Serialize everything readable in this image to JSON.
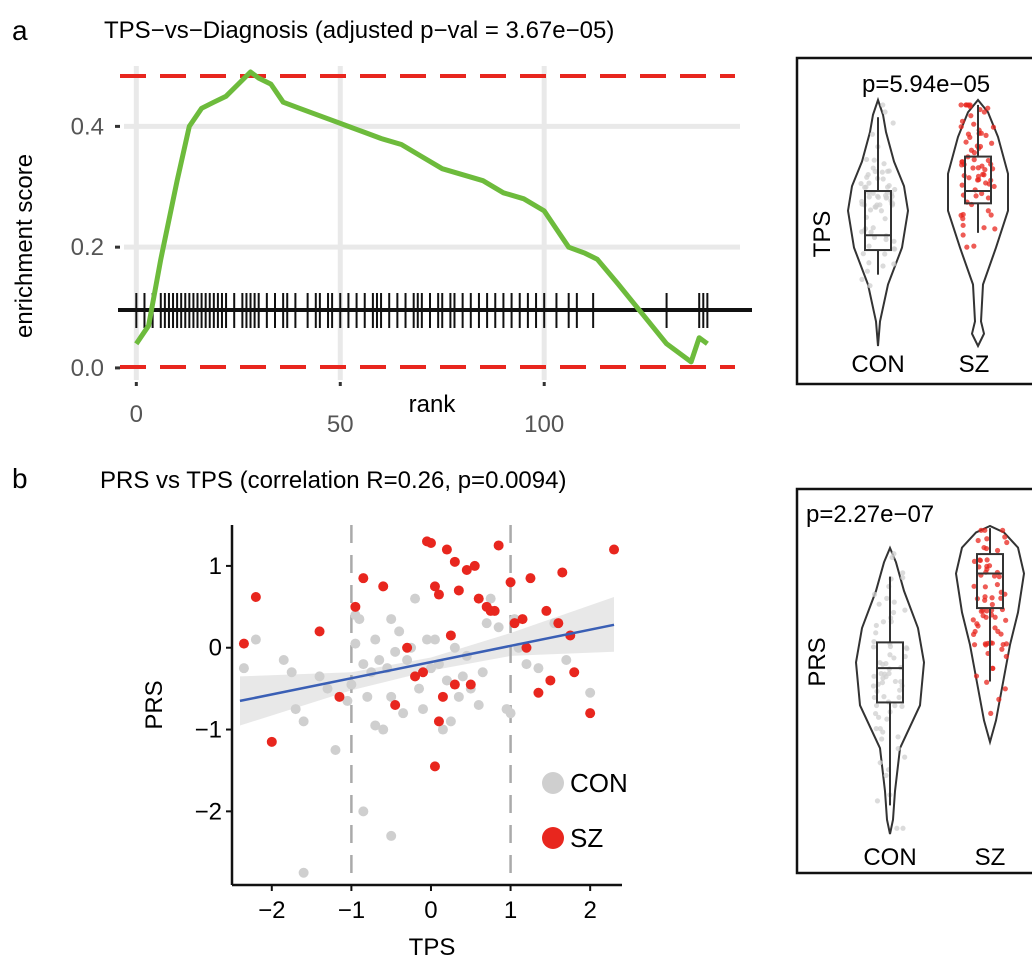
{
  "panel_a": {
    "label": "a",
    "title": "TPS−vs−Diagnosis (adjusted p−val = 3.67e−05)",
    "ylabel": "enrichment score",
    "xlabel": "rank",
    "yticks": [
      "0.0",
      "0.2",
      "0.4"
    ],
    "xticks": [
      "0",
      "50",
      "100"
    ]
  },
  "panel_a_violin": {
    "pvalue": "p=5.94e−05",
    "ylabel": "TPS",
    "groups": [
      "CON",
      "SZ"
    ]
  },
  "panel_b": {
    "label": "b",
    "title": "PRS vs TPS (correlation R=0.26, p=0.0094)",
    "ylabel": "PRS",
    "xlabel": "TPS",
    "yticks": [
      "−2",
      "−1",
      "0",
      "1"
    ],
    "xticks": [
      "−2",
      "−1",
      "0",
      "1",
      "2"
    ],
    "legend": [
      "CON",
      "SZ"
    ]
  },
  "panel_b_violin": {
    "pvalue": "p=2.27e−07",
    "ylabel": "PRS",
    "groups": [
      "CON",
      "SZ"
    ]
  },
  "colors": {
    "running_score": "#6dbb3c",
    "threshold": "#e8261e",
    "con": "#cfcfcf",
    "sz": "#e8261e",
    "regression": "#3a5fb5",
    "band": "#e6e6e6"
  },
  "chart_data": [
    {
      "type": "line",
      "title": "TPS−vs−Diagnosis (adjusted p−val = 3.67e−05)",
      "xlabel": "rank",
      "ylabel": "enrichment score",
      "xlim": [
        -4,
        148
      ],
      "ylim": [
        -0.02,
        0.5
      ],
      "x": [
        0,
        3,
        6,
        10,
        13,
        16,
        19,
        22,
        25,
        28,
        30,
        33,
        36,
        40,
        44,
        48,
        52,
        56,
        60,
        65,
        70,
        75,
        80,
        85,
        90,
        95,
        100,
        103,
        106,
        110,
        113,
        118,
        124,
        130,
        136,
        138,
        140
      ],
      "series": [
        {
          "values": [
            0.04,
            0.07,
            0.18,
            0.31,
            0.4,
            0.43,
            0.44,
            0.45,
            0.47,
            0.49,
            0.48,
            0.47,
            0.44,
            0.43,
            0.42,
            0.41,
            0.4,
            0.39,
            0.38,
            0.37,
            0.35,
            0.33,
            0.32,
            0.31,
            0.29,
            0.28,
            0.26,
            0.23,
            0.2,
            0.19,
            0.18,
            0.14,
            0.09,
            0.04,
            0.01,
            0.05,
            0.04
          ]
        }
      ],
      "hits": [
        0,
        2,
        4,
        6,
        7,
        8,
        9,
        10,
        11,
        12,
        13,
        14,
        15,
        16,
        17,
        18,
        19,
        20,
        21,
        22,
        24,
        26,
        27,
        28,
        29,
        30,
        32,
        34,
        36,
        37,
        39,
        42,
        44,
        45,
        47,
        48,
        50,
        52,
        54,
        56,
        58,
        59,
        60,
        62,
        64,
        66,
        68,
        69,
        70,
        72,
        74,
        75,
        77,
        78,
        80,
        82,
        84,
        86,
        88,
        90,
        92,
        94,
        96,
        98,
        100,
        103,
        106,
        108,
        112,
        130,
        138,
        139,
        140
      ],
      "thresholds": [
        0.0,
        0.48
      ],
      "yticks": [
        0.0,
        0.2,
        0.4
      ],
      "xticks": [
        0,
        50,
        100
      ],
      "grid": true
    },
    {
      "type": "scatter",
      "title": "PRS vs TPS (correlation R=0.26, p=0.0094)",
      "xlabel": "TPS",
      "ylabel": "PRS",
      "xlim": [
        -2.5,
        2.4
      ],
      "ylim": [
        -2.9,
        1.5
      ],
      "vlines": [
        -1,
        1
      ],
      "legend_position": "bottom-right",
      "regression": {
        "x": [
          -2.4,
          2.3
        ],
        "y": [
          -0.65,
          0.28
        ],
        "band": [
          [
            -2.4,
            -0.95,
            -0.35
          ],
          [
            -1.0,
            -0.52,
            -0.3
          ],
          [
            0.0,
            -0.28,
            -0.12
          ],
          [
            1.0,
            -0.1,
            0.18
          ],
          [
            2.3,
            -0.05,
            0.62
          ]
        ]
      },
      "series": [
        {
          "name": "CON",
          "x": [
            -2.35,
            -2.2,
            -1.85,
            -1.75,
            -1.7,
            -1.6,
            -1.4,
            -1.3,
            -1.2,
            -1.05,
            -1.0,
            -0.95,
            -0.9,
            -0.85,
            -0.8,
            -0.75,
            -0.7,
            -0.7,
            -0.65,
            -0.6,
            -0.55,
            -0.5,
            -0.5,
            -0.45,
            -0.4,
            -0.35,
            -0.3,
            -0.25,
            -0.2,
            -0.2,
            -0.15,
            -0.1,
            -0.05,
            0.0,
            0.05,
            0.1,
            0.15,
            0.2,
            0.25,
            0.3,
            0.35,
            0.4,
            0.45,
            0.5,
            0.6,
            0.65,
            0.7,
            0.85,
            0.95,
            1.0,
            1.05,
            1.1,
            1.2,
            1.35,
            1.55,
            1.7,
            2.0,
            -0.85,
            -0.5,
            -1.6,
            -0.95,
            0.75
          ],
          "y": [
            -0.25,
            0.1,
            -0.15,
            -0.3,
            -0.75,
            -0.9,
            -0.35,
            -0.5,
            -1.25,
            -0.65,
            -0.45,
            0.05,
            0.35,
            -0.2,
            -0.6,
            -0.3,
            0.1,
            -0.95,
            -0.15,
            -1.0,
            -0.25,
            0.35,
            -0.6,
            -0.05,
            0.2,
            -0.8,
            -0.15,
            0.0,
            -0.35,
            0.6,
            -0.5,
            -0.75,
            0.1,
            -0.25,
            0.1,
            -0.2,
            -1.0,
            -0.4,
            -0.9,
            0.0,
            -0.6,
            -0.35,
            -0.1,
            -0.5,
            -0.7,
            -0.3,
            0.3,
            0.25,
            -0.75,
            -0.8,
            0.35,
            0.0,
            -0.2,
            -0.25,
            0.3,
            -0.15,
            -0.55,
            -2.0,
            -2.3,
            -2.75,
            0.4,
            0.6
          ]
        },
        {
          "name": "SZ",
          "x": [
            -2.35,
            -2.2,
            -2.0,
            -1.4,
            -1.15,
            -0.95,
            -0.85,
            -0.6,
            -0.45,
            -0.2,
            0.0,
            0.05,
            0.1,
            0.2,
            0.3,
            0.35,
            0.45,
            0.55,
            0.6,
            0.7,
            0.75,
            0.8,
            0.85,
            1.0,
            1.05,
            1.15,
            1.25,
            1.35,
            1.45,
            1.5,
            1.6,
            1.65,
            1.75,
            1.8,
            2.0,
            2.3,
            0.3,
            0.5,
            -0.05,
            0.05,
            0.15,
            -0.1,
            1.2,
            0.25,
            0.1,
            -0.3
          ],
          "y": [
            0.05,
            0.62,
            -1.15,
            0.2,
            -0.6,
            0.5,
            0.85,
            0.75,
            -0.7,
            -0.35,
            1.28,
            0.75,
            0.65,
            1.2,
            -0.45,
            0.7,
            0.95,
            1.0,
            0.6,
            0.5,
            0.45,
            0.45,
            1.25,
            0.8,
            0.3,
            0.35,
            0.85,
            -0.55,
            0.45,
            -0.4,
            0.3,
            0.92,
            0.15,
            -0.3,
            -0.8,
            1.2,
            1.05,
            -0.45,
            1.3,
            -1.45,
            -0.6,
            -0.3,
            0.0,
            0.15,
            -0.9,
            0.0
          ]
        }
      ],
      "xticks": [
        -2,
        -1,
        0,
        1,
        2
      ],
      "yticks": [
        -2,
        -1,
        0,
        1
      ]
    },
    {
      "type": "scatter",
      "title": "p=5.94e−05",
      "ylabel": "TPS",
      "categories": [
        "CON",
        "SZ"
      ],
      "series": [
        {
          "name": "CON",
          "box": [
            0.29,
            0.39,
            0.45,
            0.63,
            0.93
          ]
        },
        {
          "name": "SZ",
          "box": [
            0.46,
            0.58,
            0.63,
            0.77,
            0.98
          ]
        }
      ]
    },
    {
      "type": "scatter",
      "title": "p=2.27e−07",
      "ylabel": "PRS",
      "categories": [
        "CON",
        "SZ"
      ],
      "series": [
        {
          "name": "CON",
          "box": [
            0.1,
            0.46,
            0.58,
            0.67,
            0.9
          ]
        },
        {
          "name": "SZ",
          "box": [
            0.28,
            0.62,
            0.78,
            0.87,
            0.99
          ]
        }
      ]
    }
  ]
}
